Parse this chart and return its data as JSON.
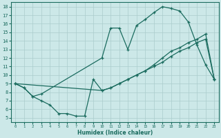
{
  "xlabel": "Humidex (Indice chaleur)",
  "bg_color": "#cce8e8",
  "grid_color": "#aacccc",
  "line_color": "#1a6b5e",
  "xlim": [
    -0.5,
    23.5
  ],
  "ylim": [
    4.5,
    18.5
  ],
  "xticks": [
    0,
    1,
    2,
    3,
    4,
    5,
    6,
    7,
    8,
    9,
    10,
    11,
    12,
    13,
    14,
    15,
    16,
    17,
    18,
    19,
    20,
    21,
    22,
    23
  ],
  "yticks": [
    5,
    6,
    7,
    8,
    9,
    10,
    11,
    12,
    13,
    14,
    15,
    16,
    17,
    18
  ],
  "line1_x": [
    0,
    1,
    2,
    3,
    10,
    11,
    12,
    13,
    14,
    15,
    16,
    17,
    18,
    19,
    20,
    21,
    22,
    23
  ],
  "line1_y": [
    9.0,
    8.5,
    7.5,
    7.8,
    12.0,
    15.5,
    15.5,
    13.0,
    15.8,
    16.5,
    17.3,
    18.0,
    17.8,
    17.5,
    16.2,
    13.5,
    11.2,
    9.5
  ],
  "line2_x": [
    0,
    1,
    2,
    3,
    4,
    5,
    6,
    7,
    8,
    9,
    10,
    11,
    12,
    13,
    14,
    15,
    16,
    17,
    18,
    19,
    20,
    21,
    22,
    23
  ],
  "line2_y": [
    9.0,
    8.5,
    7.5,
    7.0,
    6.5,
    5.5,
    5.5,
    5.2,
    5.2,
    9.5,
    8.2,
    8.5,
    9.0,
    9.5,
    10.0,
    10.5,
    11.0,
    11.5,
    12.2,
    12.8,
    13.2,
    13.8,
    14.2,
    9.5
  ],
  "line3_x": [
    0,
    10,
    11,
    12,
    13,
    14,
    15,
    16,
    17,
    18,
    19,
    20,
    21,
    22,
    23
  ],
  "line3_y": [
    9.0,
    8.2,
    8.5,
    9.0,
    9.5,
    10.0,
    10.5,
    11.2,
    12.0,
    12.8,
    13.2,
    13.8,
    14.2,
    14.8,
    9.5
  ]
}
